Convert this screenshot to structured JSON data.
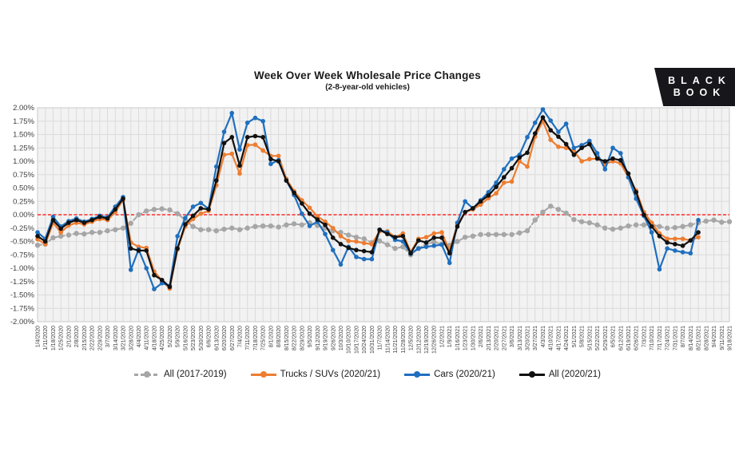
{
  "logo": {
    "line1": "BLACK",
    "line2": "BOOK",
    "background": "#17171B",
    "text_color": "#FFFFFF"
  },
  "chart_data": {
    "type": "line",
    "title": "Week Over Week Wholesale Price Changes",
    "subtitle": "(2-8-year-old vehicles)",
    "ylabel": "",
    "xlabel": "",
    "ylim": [
      -2,
      2
    ],
    "ystep": 0.25,
    "ytick_format": "0.00%",
    "grid": true,
    "legend_position": "bottom",
    "plot_bg": "#F2F2F2",
    "grid_color": "#DBDBDB",
    "border_color": "#C8C8C8",
    "zero_line_color": "#FF2B2B",
    "axis_text_color": "#404040",
    "categories": [
      "1/4/2020",
      "1/11/2020",
      "1/18/2020",
      "1/25/2020",
      "2/1/2020",
      "2/8/2020",
      "2/15/2020",
      "2/22/2020",
      "2/29/2020",
      "3/7/2020",
      "3/14/2020",
      "3/21/2020",
      "3/28/2020",
      "4/4/2020",
      "4/11/2020",
      "4/18/2020",
      "4/25/2020",
      "5/2/2020",
      "5/9/2020",
      "5/16/2020",
      "5/23/2020",
      "5/30/2020",
      "6/6/2020",
      "6/13/2020",
      "6/20/2020",
      "6/27/2020",
      "7/4/2020",
      "7/11/2020",
      "7/18/2020",
      "7/25/2020",
      "8/1/2020",
      "8/8/2020",
      "8/15/2020",
      "8/22/2020",
      "8/29/2020",
      "9/5/2020",
      "9/12/2020",
      "9/19/2020",
      "9/26/2020",
      "10/3/2020",
      "10/10/2020",
      "10/17/2020",
      "10/24/2020",
      "10/31/2020",
      "11/7/2020",
      "11/14/2020",
      "11/21/2020",
      "11/28/2020",
      "12/5/2020",
      "12/12/2020",
      "12/19/2020",
      "12/26/2020",
      "1/2/2021",
      "1/9/2021",
      "1/16/2021",
      "1/23/2021",
      "1/30/2021",
      "2/6/2021",
      "2/13/2021",
      "2/20/2021",
      "2/27/2021",
      "3/6/2021",
      "3/13/2021",
      "3/20/2021",
      "3/27/2021",
      "4/3/2021",
      "4/10/2021",
      "4/17/2021",
      "4/24/2021",
      "5/1/2021",
      "5/8/2021",
      "5/15/2021",
      "5/22/2021",
      "5/29/2021",
      "6/5/2021",
      "6/12/2021",
      "6/19/2021",
      "6/26/2021",
      "7/3/2021",
      "7/10/2021",
      "7/17/2021",
      "7/24/2021",
      "7/31/2021",
      "8/7/2021",
      "8/14/2021",
      "8/21/2021",
      "8/28/2021",
      "9/4/2021",
      "9/11/2021",
      "9/18/2021"
    ],
    "series": [
      {
        "name": "All (2017-2019)",
        "color": "#A6A6A6",
        "dashed": true,
        "line_width": 2,
        "marker_radius": 3.2,
        "values": [
          -0.57,
          -0.55,
          -0.43,
          -0.4,
          -0.38,
          -0.35,
          -0.36,
          -0.33,
          -0.33,
          -0.3,
          -0.28,
          -0.25,
          -0.16,
          0.0,
          0.07,
          0.1,
          0.11,
          0.09,
          0.02,
          -0.1,
          -0.22,
          -0.28,
          -0.28,
          -0.3,
          -0.27,
          -0.25,
          -0.28,
          -0.25,
          -0.22,
          -0.21,
          -0.21,
          -0.23,
          -0.19,
          -0.17,
          -0.19,
          -0.15,
          -0.2,
          -0.25,
          -0.3,
          -0.33,
          -0.38,
          -0.42,
          -0.45,
          -0.52,
          -0.49,
          -0.56,
          -0.63,
          -0.6,
          -0.75,
          -0.63,
          -0.55,
          -0.51,
          -0.55,
          -0.57,
          -0.5,
          -0.42,
          -0.4,
          -0.37,
          -0.37,
          -0.37,
          -0.37,
          -0.37,
          -0.34,
          -0.3,
          -0.1,
          0.05,
          0.16,
          0.1,
          0.03,
          -0.09,
          -0.13,
          -0.15,
          -0.19,
          -0.25,
          -0.27,
          -0.25,
          -0.21,
          -0.19,
          -0.19,
          -0.18,
          -0.22,
          -0.25,
          -0.24,
          -0.22,
          -0.19,
          -0.15,
          -0.12,
          -0.1,
          -0.14,
          -0.13
        ]
      },
      {
        "name": "Trucks / SUVs (2020/21)",
        "color": "#ED7D31",
        "dashed": false,
        "line_width": 2.2,
        "marker_radius": 2.8,
        "values": [
          -0.46,
          -0.55,
          -0.15,
          -0.33,
          -0.2,
          -0.15,
          -0.18,
          -0.13,
          -0.08,
          -0.1,
          0.05,
          0.28,
          -0.52,
          -0.6,
          -0.62,
          -1.06,
          -1.23,
          -1.38,
          -0.65,
          -0.22,
          -0.08,
          0.02,
          0.07,
          0.55,
          1.12,
          1.14,
          0.77,
          1.3,
          1.31,
          1.2,
          1.1,
          1.1,
          0.67,
          0.44,
          0.27,
          0.13,
          -0.03,
          -0.13,
          -0.25,
          -0.4,
          -0.49,
          -0.5,
          -0.53,
          -0.55,
          -0.31,
          -0.31,
          -0.42,
          -0.35,
          -0.7,
          -0.45,
          -0.42,
          -0.35,
          -0.33,
          -0.68,
          -0.18,
          0.05,
          0.1,
          0.19,
          0.31,
          0.4,
          0.6,
          0.62,
          1.0,
          0.9,
          1.46,
          1.75,
          1.4,
          1.27,
          1.25,
          1.19,
          1.0,
          1.04,
          1.05,
          0.95,
          1.0,
          0.96,
          0.7,
          0.45,
          0.05,
          -0.15,
          -0.35,
          -0.45,
          -0.45,
          -0.45,
          -0.48,
          -0.42
        ]
      },
      {
        "name": "Cars (2020/21)",
        "color": "#1F6FBE",
        "dashed": false,
        "line_width": 2.2,
        "marker_radius": 2.8,
        "values": [
          -0.33,
          -0.45,
          -0.04,
          -0.22,
          -0.12,
          -0.07,
          -0.13,
          -0.08,
          -0.02,
          -0.05,
          0.15,
          0.33,
          -1.03,
          -0.65,
          -1.0,
          -1.39,
          -1.28,
          -1.33,
          -0.4,
          -0.06,
          0.15,
          0.22,
          0.11,
          0.9,
          1.55,
          1.9,
          1.22,
          1.72,
          1.81,
          1.75,
          0.95,
          1.02,
          0.64,
          0.37,
          0.02,
          -0.21,
          -0.13,
          -0.36,
          -0.66,
          -0.93,
          -0.6,
          -0.79,
          -0.83,
          -0.83,
          -0.28,
          -0.33,
          -0.47,
          -0.5,
          -0.73,
          -0.63,
          -0.6,
          -0.58,
          -0.56,
          -0.9,
          -0.15,
          0.25,
          0.12,
          0.27,
          0.42,
          0.6,
          0.85,
          1.05,
          1.12,
          1.45,
          1.72,
          1.97,
          1.76,
          1.55,
          1.7,
          1.25,
          1.3,
          1.38,
          1.15,
          0.85,
          1.25,
          1.15,
          0.7,
          0.3,
          -0.02,
          -0.33,
          -1.02,
          -0.63,
          -0.67,
          -0.7,
          -0.72,
          -0.1
        ]
      },
      {
        "name": "All (2020/21)",
        "color": "#111111",
        "dashed": false,
        "line_width": 2.2,
        "marker_radius": 2.8,
        "values": [
          -0.4,
          -0.5,
          -0.1,
          -0.26,
          -0.15,
          -0.1,
          -0.15,
          -0.1,
          -0.04,
          -0.07,
          0.1,
          0.3,
          -0.63,
          -0.67,
          -0.67,
          -1.13,
          -1.22,
          -1.35,
          -0.63,
          -0.18,
          -0.02,
          0.12,
          0.1,
          0.64,
          1.34,
          1.45,
          0.92,
          1.45,
          1.47,
          1.45,
          1.04,
          1.0,
          0.64,
          0.41,
          0.21,
          0.02,
          -0.09,
          -0.19,
          -0.43,
          -0.55,
          -0.62,
          -0.66,
          -0.68,
          -0.7,
          -0.28,
          -0.36,
          -0.42,
          -0.4,
          -0.72,
          -0.48,
          -0.52,
          -0.43,
          -0.43,
          -0.72,
          -0.22,
          0.05,
          0.12,
          0.25,
          0.36,
          0.52,
          0.7,
          0.87,
          1.07,
          1.16,
          1.52,
          1.82,
          1.58,
          1.46,
          1.32,
          1.12,
          1.25,
          1.32,
          1.05,
          1.0,
          1.05,
          1.02,
          0.77,
          0.42,
          0.0,
          -0.22,
          -0.4,
          -0.52,
          -0.55,
          -0.58,
          -0.48,
          -0.33
        ]
      }
    ]
  }
}
